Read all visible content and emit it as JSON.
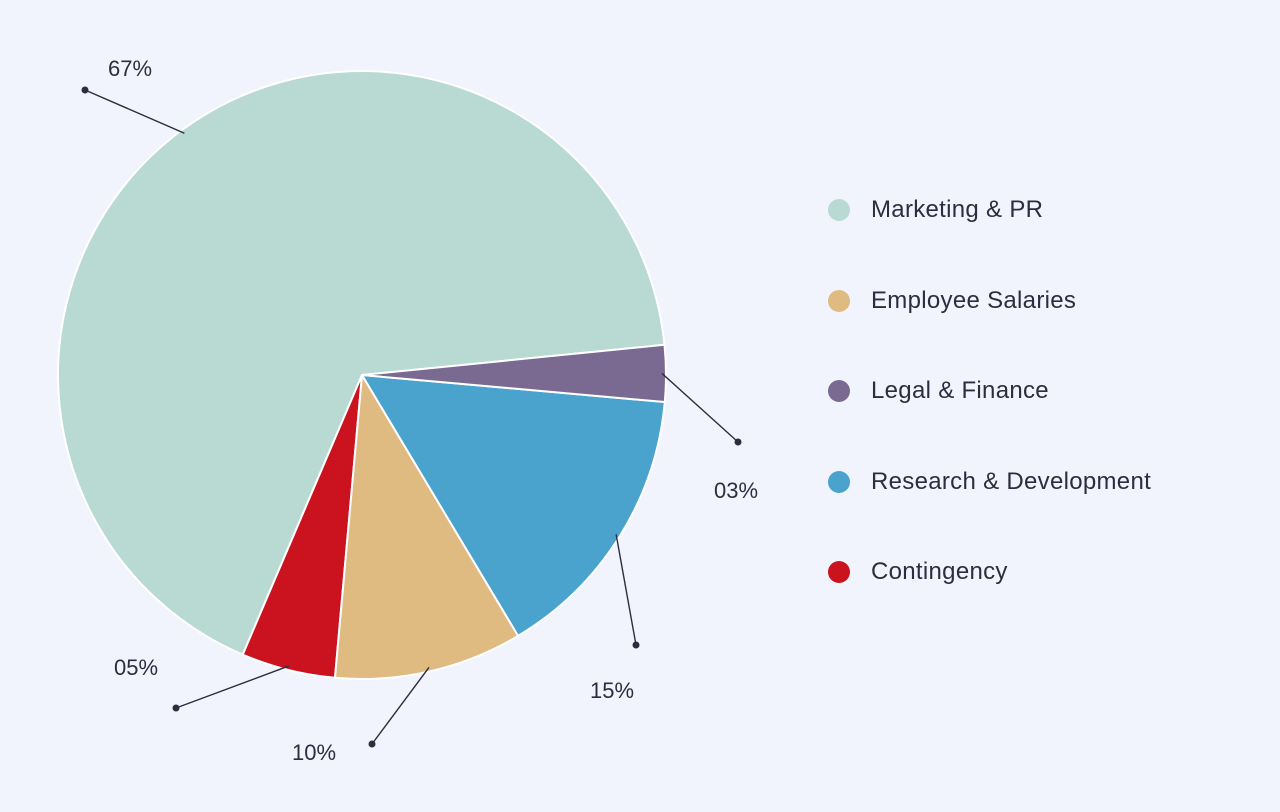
{
  "chart_data": {
    "type": "pie",
    "slices": [
      {
        "label": "Marketing & PR",
        "value": 67,
        "display": "67%",
        "color": "#b9dad3"
      },
      {
        "label": "Employee Salaries",
        "value": 10,
        "display": "10%",
        "color": "#dfbb81"
      },
      {
        "label": "Legal & Finance",
        "value": 3,
        "display": "03%",
        "color": "#7a6a91"
      },
      {
        "label": "Research & Development",
        "value": 15,
        "display": "15%",
        "color": "#4aa3cd"
      },
      {
        "label": "Contingency",
        "value": 5,
        "display": "05%",
        "color": "#cb1320"
      }
    ],
    "legend_position": "right",
    "title": ""
  },
  "legend": {
    "items": [
      {
        "label": "Marketing & PR",
        "color": "#b9dad3"
      },
      {
        "label": "Employee Salaries",
        "color": "#dfbb81"
      },
      {
        "label": "Legal & Finance",
        "color": "#7a6a91"
      },
      {
        "label": "Research & Development",
        "color": "#4aa3cd"
      },
      {
        "label": "Contingency",
        "color": "#cb1320"
      }
    ]
  },
  "colors": {
    "background": "#f1f4fd",
    "text": "#2c2d3e",
    "leader": "#2c2d3e"
  }
}
